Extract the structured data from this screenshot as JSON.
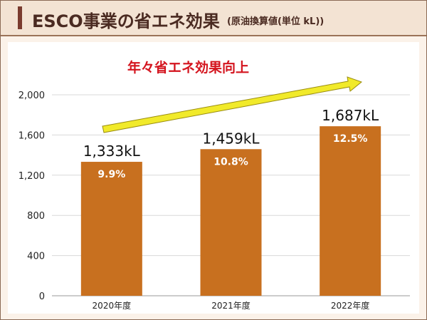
{
  "header": {
    "title": "ESCO事業の省エネ効果",
    "subtitle": "(原油換算値(単位 kL))"
  },
  "colors": {
    "bar": "#c8701f",
    "arrow": "#f1ea2a",
    "arrow_outline": "#9a8d0f",
    "annotation": "#d4141e",
    "grid": "#d8d8d8",
    "header_bg": "#f3e3d3",
    "accent_bar": "#7a3b2e"
  },
  "chart_data": {
    "type": "bar",
    "categories": [
      "2020年度",
      "2021年度",
      "2022年度"
    ],
    "values": [
      1333,
      1459,
      1687
    ],
    "value_labels": [
      "1,333kL",
      "1,459kL",
      "1,687kL"
    ],
    "percent_labels": [
      "9.9%",
      "10.8%",
      "12.5%"
    ],
    "ylim": [
      0,
      2000
    ],
    "yticks": [
      0,
      400,
      800,
      1200,
      1600,
      2000
    ],
    "ytick_labels": [
      "0",
      "400",
      "800",
      "1,200",
      "1,600",
      "2,000"
    ],
    "grid": true,
    "annotation": "年々省エネ効果向上"
  }
}
